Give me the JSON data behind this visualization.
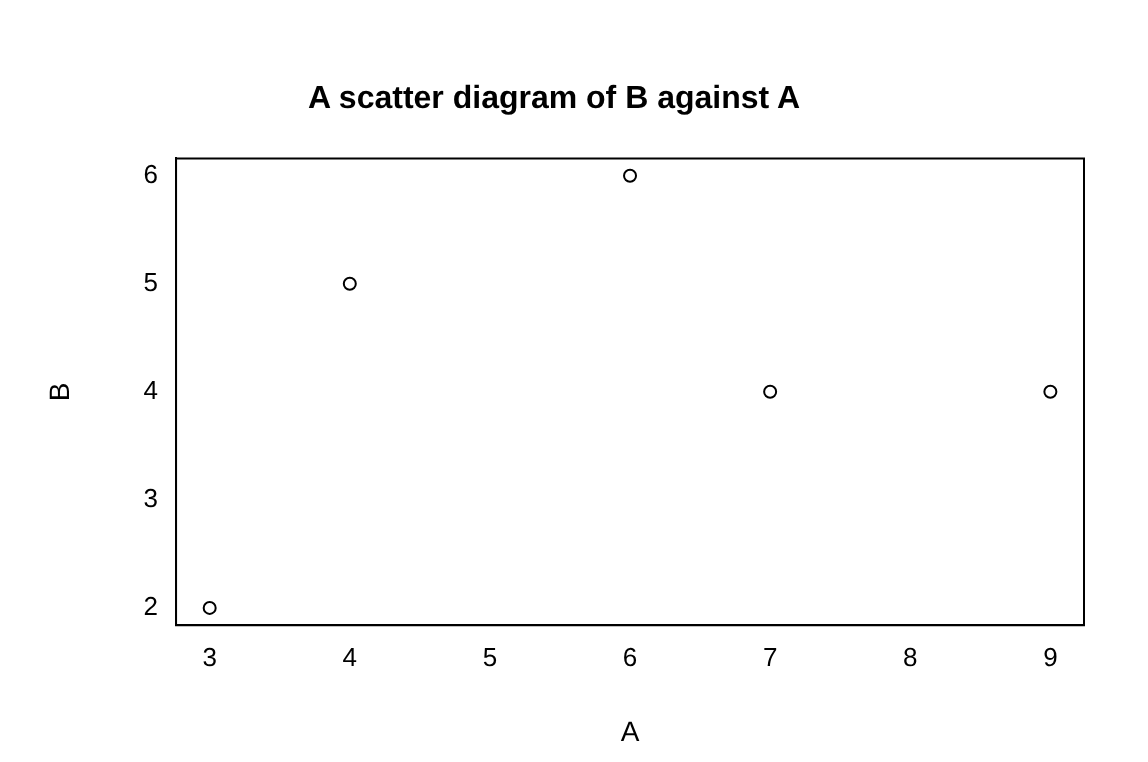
{
  "chart_data": {
    "type": "scatter",
    "title": "A scatter diagram of B against A",
    "xlabel": "A",
    "ylabel": "B",
    "x": [
      3,
      4,
      6,
      7,
      9
    ],
    "values": [
      2,
      5,
      6,
      4,
      4
    ],
    "color": "#000000",
    "marker": "circle",
    "xlim": [
      2.76,
      9.24
    ],
    "ylim": [
      1.84,
      6.16
    ],
    "xticks": [
      3,
      4,
      5,
      6,
      7,
      8,
      9
    ],
    "yticks": [
      2,
      3,
      4,
      5,
      6
    ],
    "grid": false,
    "legend": false
  }
}
